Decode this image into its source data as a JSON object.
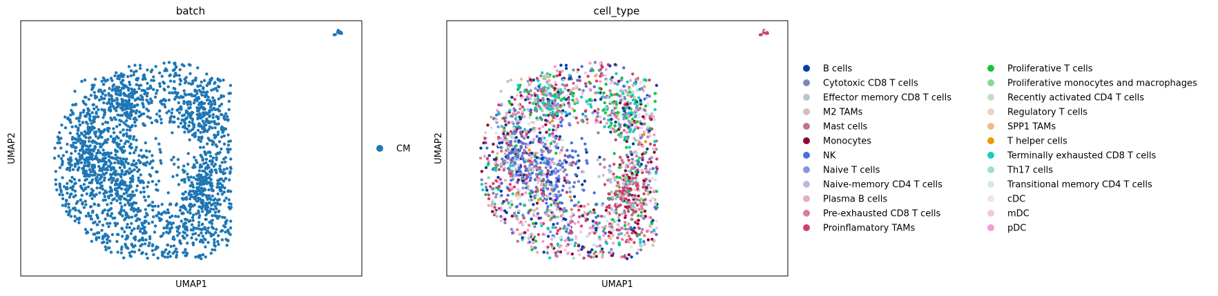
{
  "chart_data": [
    {
      "type": "scatter",
      "title": "batch",
      "xlabel": "UMAP1",
      "ylabel": "UMAP2",
      "xticks": "none",
      "yticks": "none",
      "grid": false,
      "legend_position": "right",
      "legend": [
        {
          "label": "CM",
          "color": "#1f77b4"
        }
      ]
    },
    {
      "type": "scatter",
      "title": "cell_type",
      "xlabel": "UMAP1",
      "ylabel": "UMAP2",
      "xticks": "none",
      "yticks": "none",
      "grid": false,
      "legend_position": "right",
      "legend": [
        {
          "label": "B cells",
          "color": "#023fa5"
        },
        {
          "label": "Cytotoxic CD8 T cells",
          "color": "#7d87b9"
        },
        {
          "label": "Effector memory CD8 T cells",
          "color": "#bec1d4"
        },
        {
          "label": "M2 TAMs",
          "color": "#d6bcc0"
        },
        {
          "label": "Mast cells",
          "color": "#bb7784"
        },
        {
          "label": "Monocytes",
          "color": "#8e063b"
        },
        {
          "label": "NK",
          "color": "#4a6fe3"
        },
        {
          "label": "Naive T cells",
          "color": "#8595e1"
        },
        {
          "label": "Naive-memory CD4 T cells",
          "color": "#b5bbe3"
        },
        {
          "label": "Plasma B cells",
          "color": "#e6afb9"
        },
        {
          "label": "Pre-exhausted CD8 T cells",
          "color": "#e07b91"
        },
        {
          "label": "Proinflamatory TAMs",
          "color": "#d33f6a"
        },
        {
          "label": "Proliferative T cells",
          "color": "#11c638"
        },
        {
          "label": "Proliferative monocytes and macrophages",
          "color": "#8dd593"
        },
        {
          "label": "Recently activated CD4 T cells",
          "color": "#c6dec7"
        },
        {
          "label": "Regulatory T cells",
          "color": "#ead3c6"
        },
        {
          "label": "SPP1 TAMs",
          "color": "#f0b98d"
        },
        {
          "label": "T helper cells",
          "color": "#ef9708"
        },
        {
          "label": "Terminally exhausted CD8 T cells",
          "color": "#0fcfc0"
        },
        {
          "label": "Th17 cells",
          "color": "#9cded6"
        },
        {
          "label": "Transitional memory CD4 T cells",
          "color": "#d5eae7"
        },
        {
          "label": "cDC",
          "color": "#f3e1eb"
        },
        {
          "label": "mDC",
          "color": "#f6c4e1"
        },
        {
          "label": "pDC",
          "color": "#f79cd4"
        }
      ]
    }
  ]
}
